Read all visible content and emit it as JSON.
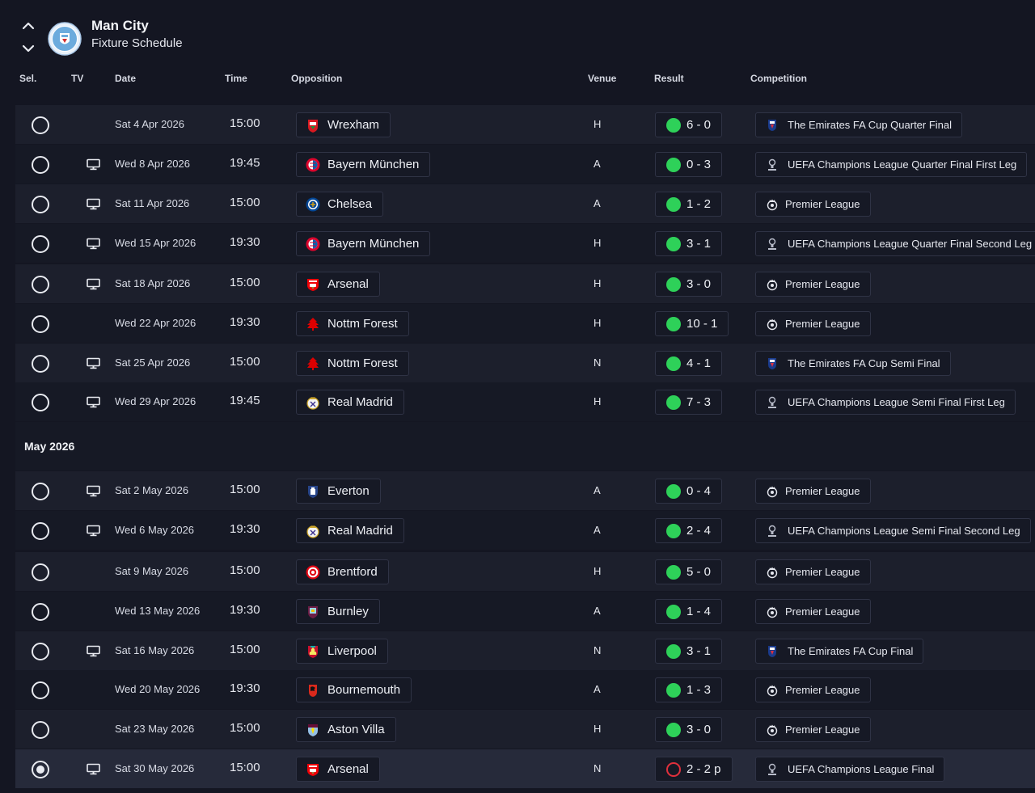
{
  "header": {
    "club_name": "Man City",
    "page_title": "Fixture Schedule"
  },
  "columns": {
    "sel": "Sel.",
    "tv": "TV",
    "date": "Date",
    "time": "Time",
    "opposition": "Opposition",
    "venue": "Venue",
    "result": "Result",
    "competition": "Competition"
  },
  "colors": {
    "win": "#2ed159",
    "penalties": "#e0303c",
    "background": "#141622"
  },
  "groups": [
    {
      "month": "",
      "fixtures": [
        {
          "date": "Sat 4 Apr 2026",
          "time": "15:00",
          "opposition": "Wrexham",
          "badge": "wrexham-badge-icon",
          "venue": "H",
          "result": "6 - 0",
          "result_type": "win",
          "competition": "The Emirates FA Cup Quarter Final",
          "comp_icon": "fa-cup-icon",
          "tv": false,
          "selected": false
        },
        {
          "date": "Wed 8 Apr 2026",
          "time": "19:45",
          "opposition": "Bayern München",
          "badge": "bayern-badge-icon",
          "venue": "A",
          "result": "0 - 3",
          "result_type": "win",
          "competition": "UEFA Champions League Quarter Final First Leg",
          "comp_icon": "champions-league-icon",
          "tv": true,
          "selected": false
        },
        {
          "date": "Sat 11 Apr 2026",
          "time": "15:00",
          "opposition": "Chelsea",
          "badge": "chelsea-badge-icon",
          "venue": "A",
          "result": "1 - 2",
          "result_type": "win",
          "competition": "Premier League",
          "comp_icon": "premier-league-icon",
          "tv": true,
          "selected": false
        },
        {
          "date": "Wed 15 Apr 2026",
          "time": "19:30",
          "opposition": "Bayern München",
          "badge": "bayern-badge-icon",
          "venue": "H",
          "result": "3 - 1",
          "result_type": "win",
          "competition": "UEFA Champions League Quarter Final Second Leg",
          "comp_icon": "champions-league-icon",
          "tv": true,
          "selected": false
        },
        {
          "date": "Sat 18 Apr 2026",
          "time": "15:00",
          "opposition": "Arsenal",
          "badge": "arsenal-badge-icon",
          "venue": "H",
          "result": "3 - 0",
          "result_type": "win",
          "competition": "Premier League",
          "comp_icon": "premier-league-icon",
          "tv": true,
          "selected": false
        },
        {
          "date": "Wed 22 Apr 2026",
          "time": "19:30",
          "opposition": "Nottm Forest",
          "badge": "forest-badge-icon",
          "venue": "H",
          "result": "10 - 1",
          "result_type": "win",
          "competition": "Premier League",
          "comp_icon": "premier-league-icon",
          "tv": false,
          "selected": false
        },
        {
          "date": "Sat 25 Apr 2026",
          "time": "15:00",
          "opposition": "Nottm Forest",
          "badge": "forest-badge-icon",
          "venue": "N",
          "result": "4 - 1",
          "result_type": "win",
          "competition": "The Emirates FA Cup Semi Final",
          "comp_icon": "fa-cup-icon",
          "tv": true,
          "selected": false
        },
        {
          "date": "Wed 29 Apr 2026",
          "time": "19:45",
          "opposition": "Real Madrid",
          "badge": "real-madrid-badge-icon",
          "venue": "H",
          "result": "7 - 3",
          "result_type": "win",
          "competition": "UEFA Champions League Semi Final First Leg",
          "comp_icon": "champions-league-icon",
          "tv": true,
          "selected": false
        }
      ]
    },
    {
      "month": "May 2026",
      "fixtures": [
        {
          "date": "Sat 2 May 2026",
          "time": "15:00",
          "opposition": "Everton",
          "badge": "everton-badge-icon",
          "venue": "A",
          "result": "0 - 4",
          "result_type": "win",
          "competition": "Premier League",
          "comp_icon": "premier-league-icon",
          "tv": true,
          "selected": false
        },
        {
          "date": "Wed 6 May 2026",
          "time": "19:30",
          "opposition": "Real Madrid",
          "badge": "real-madrid-badge-icon",
          "venue": "A",
          "result": "2 - 4",
          "result_type": "win",
          "competition": "UEFA Champions League Semi Final Second Leg",
          "comp_icon": "champions-league-icon",
          "tv": true,
          "selected": false
        },
        {
          "date": "Sat 9 May 2026",
          "time": "15:00",
          "opposition": "Brentford",
          "badge": "brentford-badge-icon",
          "venue": "H",
          "result": "5 - 0",
          "result_type": "win",
          "competition": "Premier League",
          "comp_icon": "premier-league-icon",
          "tv": false,
          "selected": false
        },
        {
          "date": "Wed 13 May 2026",
          "time": "19:30",
          "opposition": "Burnley",
          "badge": "burnley-badge-icon",
          "venue": "A",
          "result": "1 - 4",
          "result_type": "win",
          "competition": "Premier League",
          "comp_icon": "premier-league-icon",
          "tv": false,
          "selected": false
        },
        {
          "date": "Sat 16 May 2026",
          "time": "15:00",
          "opposition": "Liverpool",
          "badge": "liverpool-badge-icon",
          "venue": "N",
          "result": "3 - 1",
          "result_type": "win",
          "competition": "The Emirates FA Cup Final",
          "comp_icon": "fa-cup-icon",
          "tv": true,
          "selected": false
        },
        {
          "date": "Wed 20 May 2026",
          "time": "19:30",
          "opposition": "Bournemouth",
          "badge": "bournemouth-badge-icon",
          "venue": "A",
          "result": "1 - 3",
          "result_type": "win",
          "competition": "Premier League",
          "comp_icon": "premier-league-icon",
          "tv": false,
          "selected": false
        },
        {
          "date": "Sat 23 May 2026",
          "time": "15:00",
          "opposition": "Aston Villa",
          "badge": "aston-villa-badge-icon",
          "venue": "H",
          "result": "3 - 0",
          "result_type": "win",
          "competition": "Premier League",
          "comp_icon": "premier-league-icon",
          "tv": false,
          "selected": false
        },
        {
          "date": "Sat 30 May 2026",
          "time": "15:00",
          "opposition": "Arsenal",
          "badge": "arsenal-badge-icon",
          "venue": "N",
          "result": "2 - 2 p",
          "result_type": "penalties",
          "competition": "UEFA Champions League Final",
          "comp_icon": "champions-league-icon",
          "tv": true,
          "selected": true
        }
      ]
    }
  ]
}
